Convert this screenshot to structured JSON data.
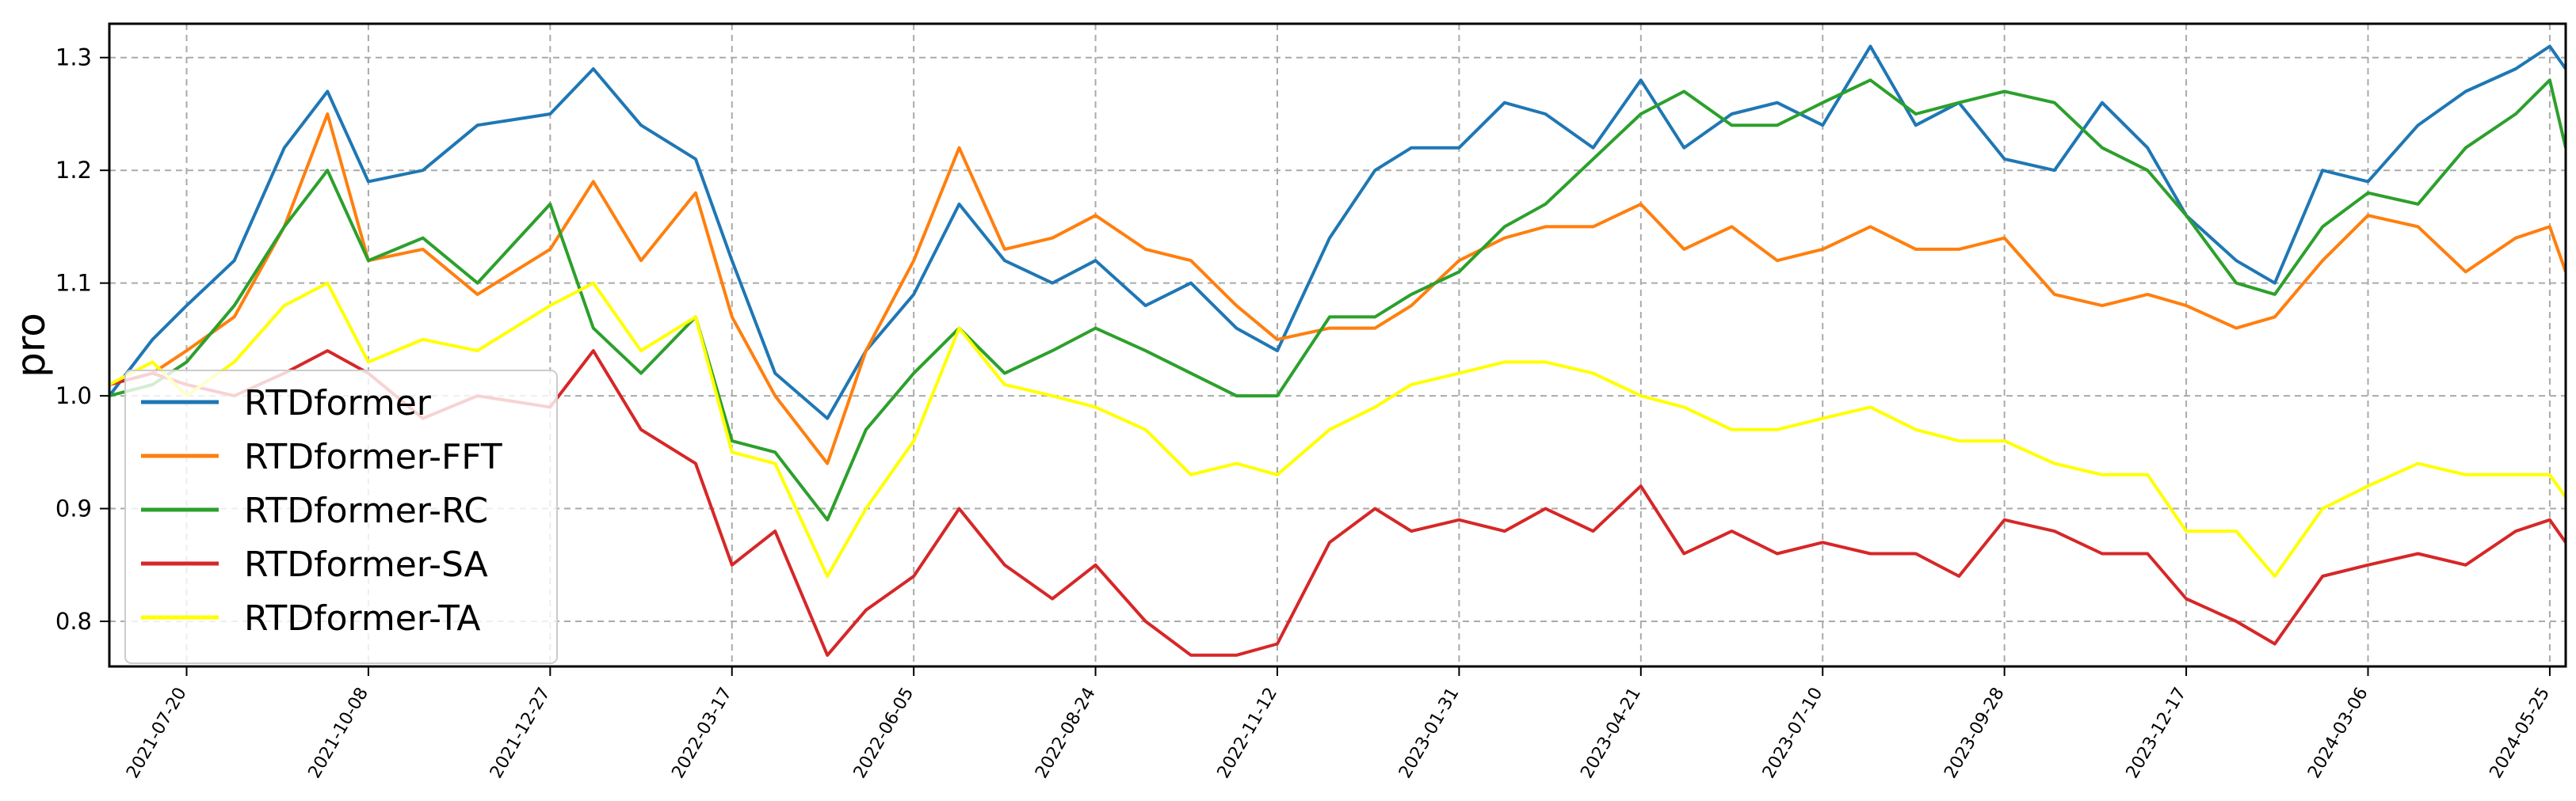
{
  "chart_data": {
    "type": "line",
    "title": "",
    "xlabel": "",
    "ylabel": "pro",
    "grid": true,
    "legend_position": "lower-left",
    "x_range": [
      "2021-06-16",
      "2024-06-01"
    ],
    "ylim": [
      0.76,
      1.33
    ],
    "y_ticks": [
      0.8,
      0.9,
      1.0,
      1.1,
      1.2,
      1.3
    ],
    "y_tick_labels": [
      "0.8",
      "0.9",
      "1.0",
      "1.1",
      "1.2",
      "1.3"
    ],
    "x_ticks": [
      "2021-07-20",
      "2021-10-08",
      "2021-12-27",
      "2022-03-17",
      "2022-06-05",
      "2022-08-24",
      "2022-11-12",
      "2023-01-31",
      "2023-04-21",
      "2023-07-10",
      "2023-09-28",
      "2023-12-17",
      "2024-03-06",
      "2024-05-25"
    ],
    "x": [
      "2021-06-16",
      "2021-07-05",
      "2021-07-20",
      "2021-08-10",
      "2021-09-01",
      "2021-09-20",
      "2021-10-08",
      "2021-11-01",
      "2021-11-25",
      "2021-12-27",
      "2022-01-15",
      "2022-02-05",
      "2022-03-01",
      "2022-03-17",
      "2022-04-05",
      "2022-04-28",
      "2022-05-15",
      "2022-06-05",
      "2022-06-25",
      "2022-07-15",
      "2022-08-05",
      "2022-08-24",
      "2022-09-15",
      "2022-10-05",
      "2022-10-25",
      "2022-11-12",
      "2022-12-05",
      "2022-12-25",
      "2023-01-10",
      "2023-01-31",
      "2023-02-20",
      "2023-03-10",
      "2023-03-31",
      "2023-04-21",
      "2023-05-10",
      "2023-05-31",
      "2023-06-20",
      "2023-07-10",
      "2023-07-31",
      "2023-08-20",
      "2023-09-08",
      "2023-09-28",
      "2023-10-20",
      "2023-11-10",
      "2023-11-30",
      "2023-12-17",
      "2024-01-08",
      "2024-01-25",
      "2024-02-15",
      "2024-03-06",
      "2024-03-28",
      "2024-04-18",
      "2024-05-10",
      "2024-05-25",
      "2024-06-01"
    ],
    "series": [
      {
        "name": "RTDformer",
        "color": "#1f77b4",
        "values": [
          1.0,
          1.05,
          1.08,
          1.12,
          1.22,
          1.27,
          1.19,
          1.2,
          1.24,
          1.25,
          1.29,
          1.24,
          1.21,
          1.12,
          1.02,
          0.98,
          1.04,
          1.09,
          1.17,
          1.12,
          1.1,
          1.12,
          1.08,
          1.1,
          1.06,
          1.04,
          1.14,
          1.2,
          1.22,
          1.22,
          1.26,
          1.25,
          1.22,
          1.28,
          1.22,
          1.25,
          1.26,
          1.24,
          1.31,
          1.24,
          1.26,
          1.21,
          1.2,
          1.26,
          1.22,
          1.16,
          1.12,
          1.1,
          1.2,
          1.19,
          1.24,
          1.27,
          1.29,
          1.31,
          1.29
        ]
      },
      {
        "name": "RTDformer-FFT",
        "color": "#ff7f0e",
        "values": [
          1.01,
          1.02,
          1.04,
          1.07,
          1.15,
          1.25,
          1.12,
          1.13,
          1.09,
          1.13,
          1.19,
          1.12,
          1.18,
          1.07,
          1.0,
          0.94,
          1.04,
          1.12,
          1.22,
          1.13,
          1.14,
          1.16,
          1.13,
          1.12,
          1.08,
          1.05,
          1.06,
          1.06,
          1.08,
          1.12,
          1.14,
          1.15,
          1.15,
          1.17,
          1.13,
          1.15,
          1.12,
          1.13,
          1.15,
          1.13,
          1.13,
          1.14,
          1.09,
          1.08,
          1.09,
          1.08,
          1.06,
          1.07,
          1.12,
          1.16,
          1.15,
          1.11,
          1.14,
          1.15,
          1.11
        ]
      },
      {
        "name": "RTDformer-RC",
        "color": "#2ca02c",
        "values": [
          1.0,
          1.01,
          1.03,
          1.08,
          1.15,
          1.2,
          1.12,
          1.14,
          1.1,
          1.17,
          1.06,
          1.02,
          1.07,
          0.96,
          0.95,
          0.89,
          0.97,
          1.02,
          1.06,
          1.02,
          1.04,
          1.06,
          1.04,
          1.02,
          1.0,
          1.0,
          1.07,
          1.07,
          1.09,
          1.11,
          1.15,
          1.17,
          1.21,
          1.25,
          1.27,
          1.24,
          1.24,
          1.26,
          1.28,
          1.25,
          1.26,
          1.27,
          1.26,
          1.22,
          1.2,
          1.16,
          1.1,
          1.09,
          1.15,
          1.18,
          1.17,
          1.22,
          1.25,
          1.28,
          1.22
        ]
      },
      {
        "name": "RTDformer-SA",
        "color": "#d62728",
        "values": [
          1.01,
          1.02,
          1.01,
          1.0,
          1.02,
          1.04,
          1.02,
          0.98,
          1.0,
          0.99,
          1.04,
          0.97,
          0.94,
          0.85,
          0.88,
          0.77,
          0.81,
          0.84,
          0.9,
          0.85,
          0.82,
          0.85,
          0.8,
          0.77,
          0.77,
          0.78,
          0.87,
          0.9,
          0.88,
          0.89,
          0.88,
          0.9,
          0.88,
          0.92,
          0.86,
          0.88,
          0.86,
          0.87,
          0.86,
          0.86,
          0.84,
          0.89,
          0.88,
          0.86,
          0.86,
          0.82,
          0.8,
          0.78,
          0.84,
          0.85,
          0.86,
          0.85,
          0.88,
          0.89,
          0.87
        ]
      },
      {
        "name": "RTDformer-TA",
        "color": "#ffff00",
        "values": [
          1.01,
          1.03,
          1.0,
          1.03,
          1.08,
          1.1,
          1.03,
          1.05,
          1.04,
          1.08,
          1.1,
          1.04,
          1.07,
          0.95,
          0.94,
          0.84,
          0.9,
          0.96,
          1.06,
          1.01,
          1.0,
          0.99,
          0.97,
          0.93,
          0.94,
          0.93,
          0.97,
          0.99,
          1.01,
          1.02,
          1.03,
          1.03,
          1.02,
          1.0,
          0.99,
          0.97,
          0.97,
          0.98,
          0.99,
          0.97,
          0.96,
          0.96,
          0.94,
          0.93,
          0.93,
          0.88,
          0.88,
          0.84,
          0.9,
          0.92,
          0.94,
          0.93,
          0.93,
          0.93,
          0.91
        ]
      }
    ]
  }
}
